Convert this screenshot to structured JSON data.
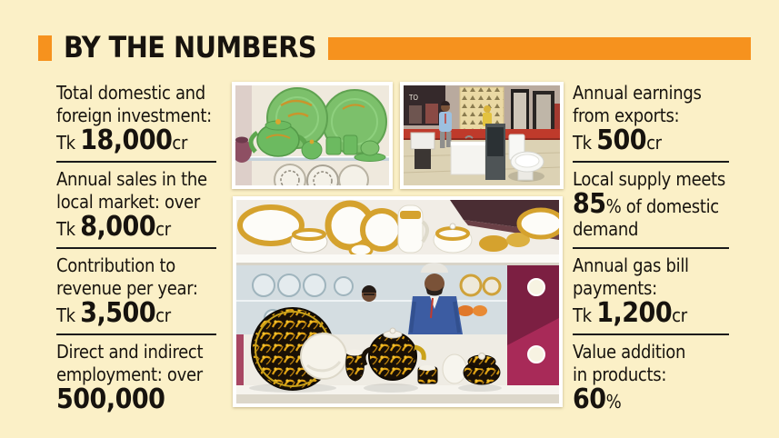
{
  "colors": {
    "background": "#fbf0c7",
    "accent_orange": "#f6921e",
    "text": "#17130e",
    "divider": "#1a1a1a"
  },
  "header": {
    "title": "BY THE NUMBERS"
  },
  "stats_left": [
    {
      "lines": [
        [
          {
            "t": "Total domestic and",
            "s": "n"
          }
        ],
        [
          {
            "t": "foreign investment:",
            "s": "n"
          }
        ],
        [
          {
            "t": "Tk ",
            "s": "n"
          },
          {
            "t": "18,000",
            "s": "b"
          },
          {
            "t": "cr",
            "s": "n"
          }
        ]
      ]
    },
    {
      "lines": [
        [
          {
            "t": "Annual sales in the",
            "s": "n"
          }
        ],
        [
          {
            "t": "local market: over",
            "s": "n"
          }
        ],
        [
          {
            "t": "Tk ",
            "s": "n"
          },
          {
            "t": "8,000",
            "s": "b"
          },
          {
            "t": "cr",
            "s": "n"
          }
        ]
      ]
    },
    {
      "lines": [
        [
          {
            "t": "Contribution to",
            "s": "n"
          }
        ],
        [
          {
            "t": "revenue per year:",
            "s": "n"
          }
        ],
        [
          {
            "t": "Tk ",
            "s": "n"
          },
          {
            "t": "3,500",
            "s": "b"
          },
          {
            "t": "cr",
            "s": "n"
          }
        ]
      ]
    },
    {
      "lines": [
        [
          {
            "t": "Direct and indirect",
            "s": "n"
          }
        ],
        [
          {
            "t": "employment: over",
            "s": "n"
          }
        ],
        [
          {
            "t": "500,000",
            "s": "b"
          }
        ]
      ]
    }
  ],
  "stats_right": [
    {
      "lines": [
        [
          {
            "t": "Annual earnings",
            "s": "n"
          }
        ],
        [
          {
            "t": "from exports:",
            "s": "n"
          }
        ],
        [
          {
            "t": "Tk ",
            "s": "n"
          },
          {
            "t": "500",
            "s": "b"
          },
          {
            "t": "cr",
            "s": "n"
          }
        ]
      ]
    },
    {
      "lines": [
        [
          {
            "t": "Local supply meets",
            "s": "n"
          }
        ],
        [
          {
            "t": "85",
            "s": "b"
          },
          {
            "t": "% of domestic",
            "s": "n"
          }
        ],
        [
          {
            "t": "demand",
            "s": "n"
          }
        ]
      ]
    },
    {
      "lines": [
        [
          {
            "t": "Annual gas bill",
            "s": "n"
          }
        ],
        [
          {
            "t": "payments:",
            "s": "n"
          }
        ],
        [
          {
            "t": "Tk ",
            "s": "n"
          },
          {
            "t": "1,200",
            "s": "b"
          },
          {
            "t": "cr",
            "s": "n"
          }
        ]
      ]
    },
    {
      "lines": [
        [
          {
            "t": "Value addition",
            "s": "n"
          }
        ],
        [
          {
            "t": "in products:",
            "s": "n"
          }
        ],
        [
          {
            "t": "60",
            "s": "b"
          },
          {
            "t": "%",
            "s": "n"
          }
        ]
      ]
    }
  ],
  "photos": {
    "green_tableware": {
      "alt": "Green ceramic tea set with gold accents displayed on shelves"
    },
    "showroom": {
      "alt": "Sanitaryware exhibition stall with visitors and displays",
      "sign": "TO"
    },
    "luxury_tableware": {
      "alt": "Gold-and-black baroque pattern ceramic tableware on showroom shelves"
    }
  }
}
